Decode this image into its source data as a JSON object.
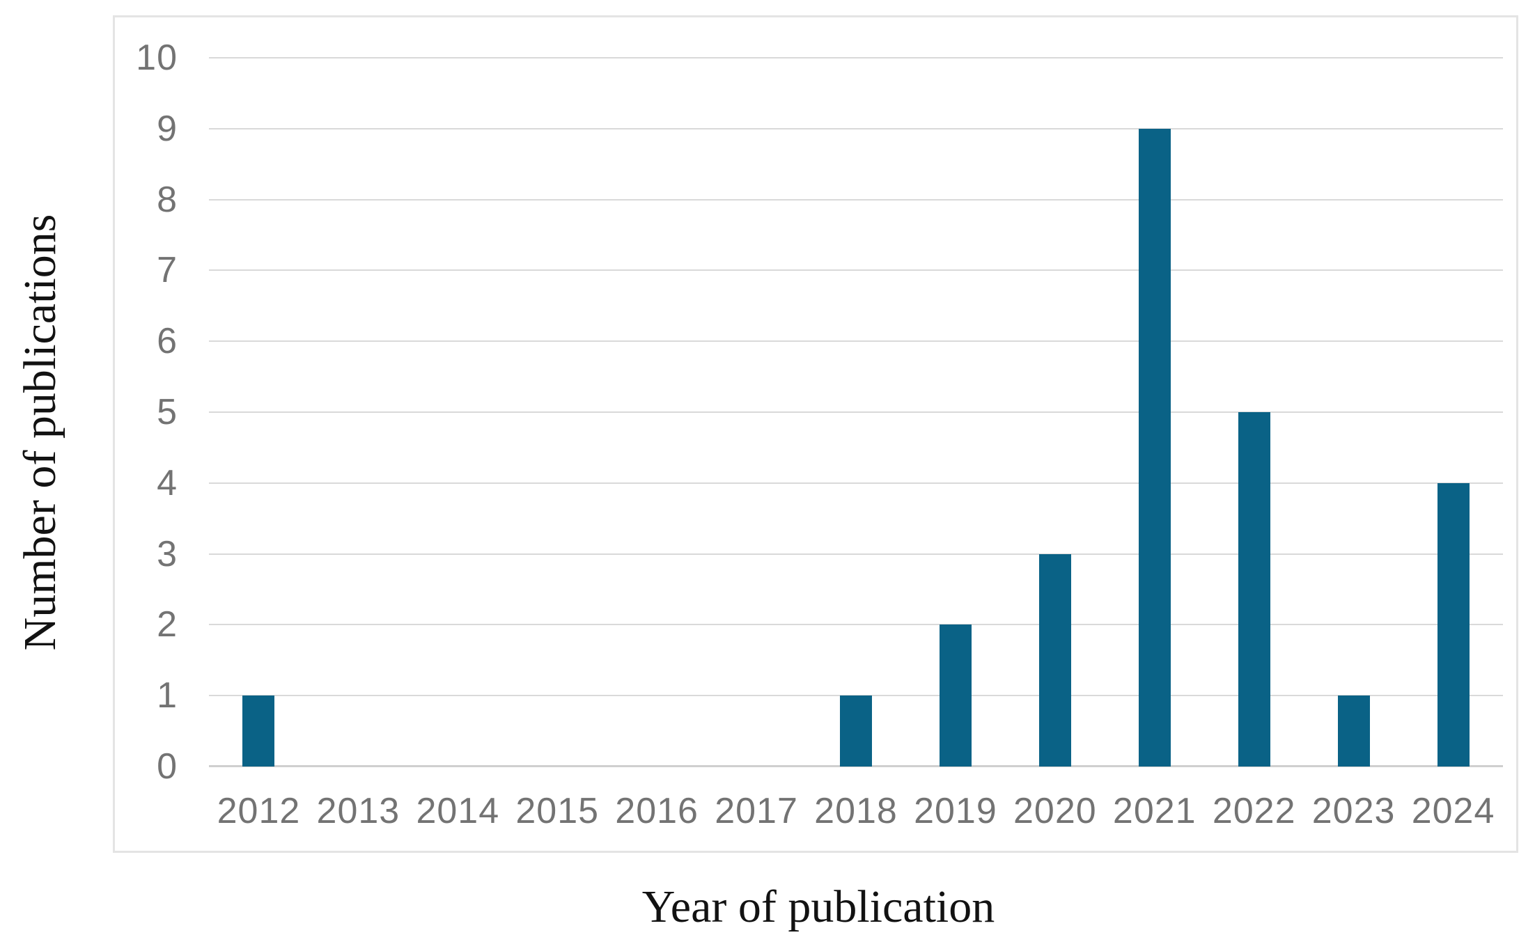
{
  "chart_data": {
    "type": "bar",
    "title": "",
    "xlabel": "Year of publication",
    "ylabel": "Number of publications",
    "categories": [
      "2012",
      "2013",
      "2014",
      "2015",
      "2016",
      "2017",
      "2018",
      "2019",
      "2020",
      "2021",
      "2022",
      "2023",
      "2024"
    ],
    "values": [
      1,
      0,
      0,
      0,
      0,
      0,
      1,
      2,
      3,
      9,
      5,
      1,
      4
    ],
    "ylim": [
      0,
      10
    ],
    "yticks": [
      0,
      1,
      2,
      3,
      4,
      5,
      6,
      7,
      8,
      9,
      10
    ],
    "grid": true,
    "legend_position": "none",
    "colors": {
      "bar": "#0a6286",
      "gridline": "#d9d9d9",
      "axis_line": "#cfcfcf",
      "tick_label": "#737373",
      "axis_title": "#121212",
      "frame_border": "#e4e4e4",
      "background": "#ffffff"
    }
  }
}
